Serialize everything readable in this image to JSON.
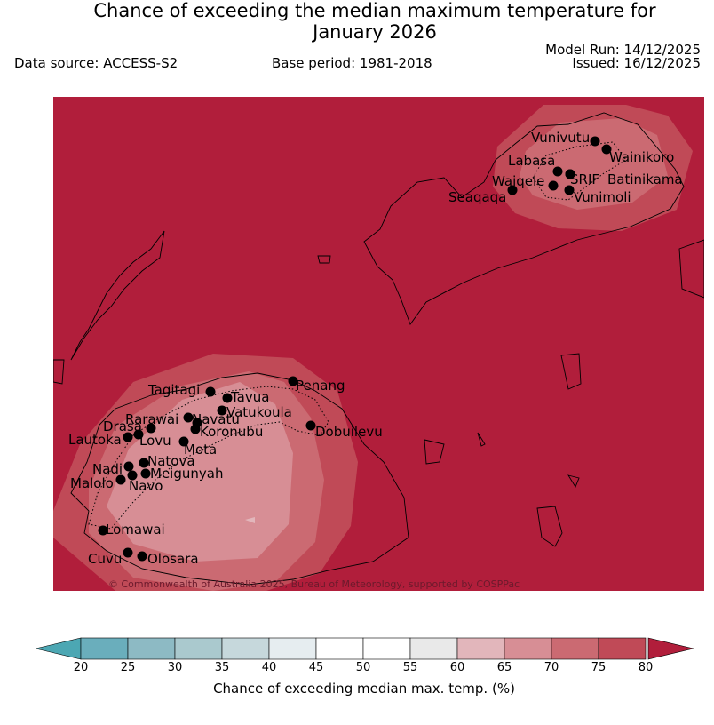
{
  "title_line1": "Chance of exceeding the median maximum temperature for",
  "title_line2": "January 2026",
  "data_source": "Data source: ACCESS-S2",
  "base_period": "Base period: 1981-2018",
  "model_run": "Model Run: 14/12/2025",
  "issued": "Issued: 16/12/2025",
  "copyright": "© Commonwealth of Australia 2025, Bureau of Meteorology, supported by COSPPac",
  "colors": {
    "background_sea": "#b11e3b",
    "band_70_75": "#c04a57",
    "band_65_70": "#cb6a72",
    "band_60_65": "#d78e95",
    "band_55_60": "#e2b6bb"
  },
  "stations": [
    {
      "name": "Vunivutu"
    },
    {
      "name": "Wainikoro"
    },
    {
      "name": "Labasa"
    },
    {
      "name": "SRIF"
    },
    {
      "name": "Batinikama"
    },
    {
      "name": "Waiqele"
    },
    {
      "name": "Vunimoli"
    },
    {
      "name": "Seaqaqa"
    },
    {
      "name": "Penang"
    },
    {
      "name": "Tagitagi"
    },
    {
      "name": "Tavua"
    },
    {
      "name": "Vatukoula"
    },
    {
      "name": "Rarawai"
    },
    {
      "name": "Navatu"
    },
    {
      "name": "Drasa"
    },
    {
      "name": "Koronubu"
    },
    {
      "name": "Lautoka"
    },
    {
      "name": "Lovu"
    },
    {
      "name": "Mota"
    },
    {
      "name": "Dobuilevu"
    },
    {
      "name": "Natova"
    },
    {
      "name": "Nadi"
    },
    {
      "name": "Meigunyah"
    },
    {
      "name": "Malolo"
    },
    {
      "name": "Navo"
    },
    {
      "name": "Lomawai"
    },
    {
      "name": "Cuvu"
    },
    {
      "name": "Olosara"
    }
  ],
  "colorbar": {
    "label": "Chance of exceeding median max. temp. (%)",
    "ticks": [
      "20",
      "25",
      "30",
      "35",
      "40",
      "45",
      "50",
      "55",
      "60",
      "65",
      "70",
      "75",
      "80"
    ],
    "colors": [
      "#6aaebc",
      "#8dbac4",
      "#aac9ce",
      "#c6d8dc",
      "#e6edf0",
      "#ffffff",
      "#ffffff",
      "#e9e9e9",
      "#e2b6bb",
      "#d78e95",
      "#cb6a72",
      "#c04a57"
    ],
    "under_color": "#4ca7b3",
    "over_color": "#b11e3b"
  }
}
